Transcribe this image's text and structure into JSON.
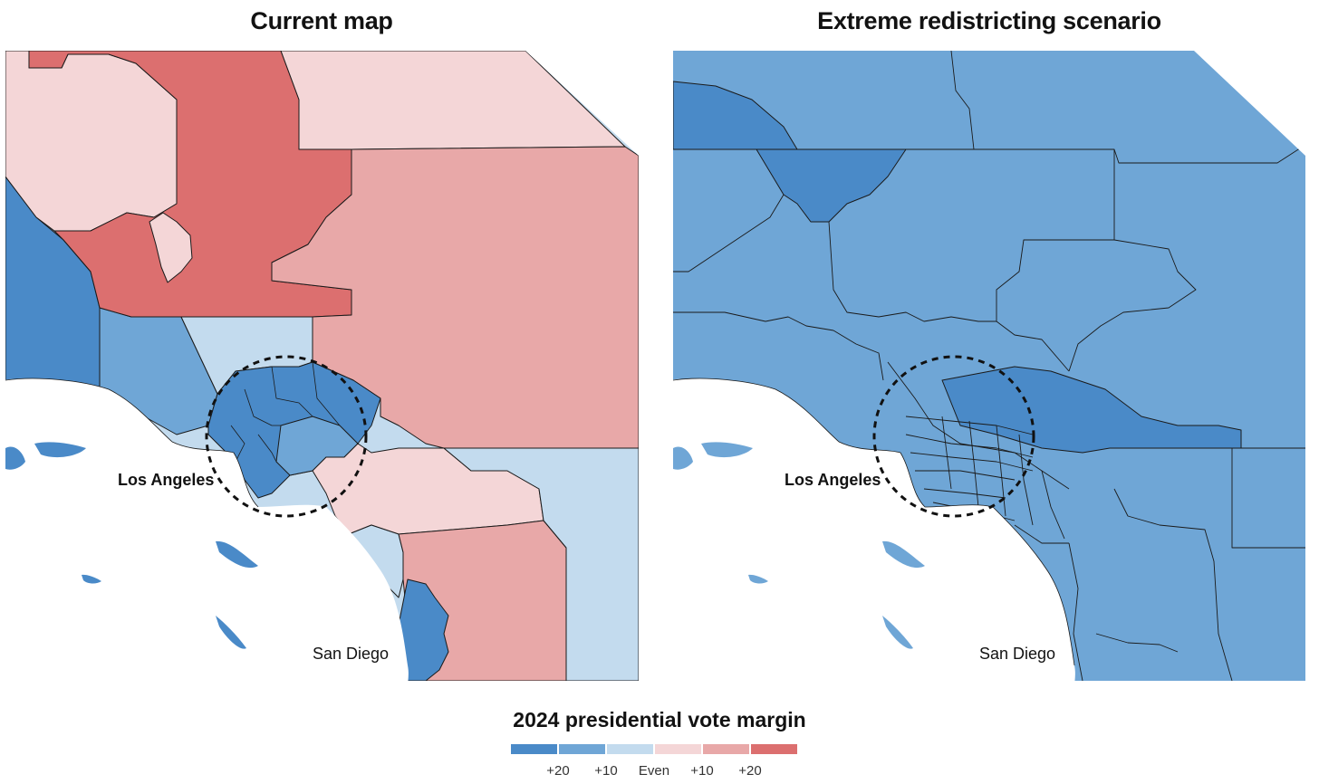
{
  "maps": {
    "left": {
      "title": "Current map"
    },
    "right": {
      "title": "Extreme redistricting scenario"
    }
  },
  "labels": {
    "los_angeles": "Los Angeles",
    "san_diego": "San Diego"
  },
  "legend": {
    "title": "2024 presidential vote margin",
    "colors": [
      "#4a8ac8",
      "#6fa6d6",
      "#c3dbee",
      "#f4d6d7",
      "#e8a8a8",
      "#dc6f6f"
    ],
    "ticks": [
      "+20",
      "+10",
      "Even",
      "+10",
      "+20"
    ]
  },
  "colors": {
    "dem_strong": "#4a8ac8",
    "dem_mid": "#6fa6d6",
    "dem_lean": "#c3dbee",
    "rep_lean": "#f4d6d7",
    "rep_mid": "#e8a8a8",
    "rep_strong": "#dc6f6f",
    "ocean": "#ffffff",
    "border": "#1a1a1a"
  }
}
